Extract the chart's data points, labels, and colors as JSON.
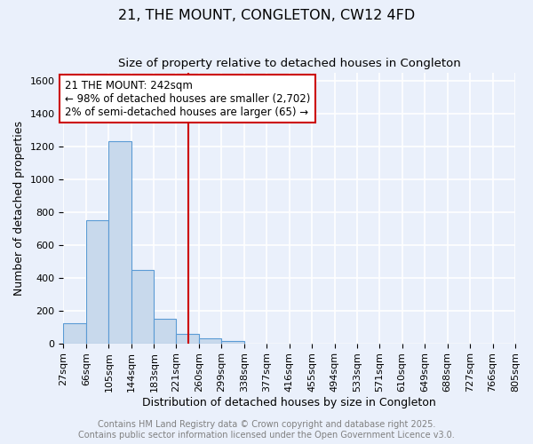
{
  "title": "21, THE MOUNT, CONGLETON, CW12 4FD",
  "subtitle": "Size of property relative to detached houses in Congleton",
  "xlabel": "Distribution of detached houses by size in Congleton",
  "ylabel": "Number of detached properties",
  "footer_line1": "Contains HM Land Registry data © Crown copyright and database right 2025.",
  "footer_line2": "Contains public sector information licensed under the Open Government Licence v3.0.",
  "bin_edges": [
    27,
    66,
    105,
    144,
    183,
    221,
    260,
    299,
    338,
    377,
    416,
    455,
    494,
    533,
    571,
    610,
    649,
    688,
    727,
    766,
    805
  ],
  "bar_heights": [
    120,
    750,
    1230,
    450,
    150,
    60,
    30,
    15,
    0,
    0,
    0,
    0,
    0,
    0,
    0,
    0,
    0,
    0,
    0,
    0
  ],
  "bar_color": "#c8d9ec",
  "bar_edge_color": "#5b9bd5",
  "property_size": 242,
  "vline_color": "#cc0000",
  "annotation_text_line1": "21 THE MOUNT: 242sqm",
  "annotation_text_line2": "← 98% of detached houses are smaller (2,702)",
  "annotation_text_line3": "2% of semi-detached houses are larger (65) →",
  "annotation_box_color": "#ffffff",
  "annotation_box_edge": "#cc0000",
  "background_color": "#eaf0fb",
  "grid_color": "#ffffff",
  "ylim": [
    0,
    1650
  ],
  "yticks": [
    0,
    200,
    400,
    600,
    800,
    1000,
    1200,
    1400,
    1600
  ],
  "title_fontsize": 11.5,
  "subtitle_fontsize": 9.5,
  "axis_label_fontsize": 9,
  "tick_fontsize": 8,
  "footer_fontsize": 7,
  "annotation_fontsize": 8.5
}
